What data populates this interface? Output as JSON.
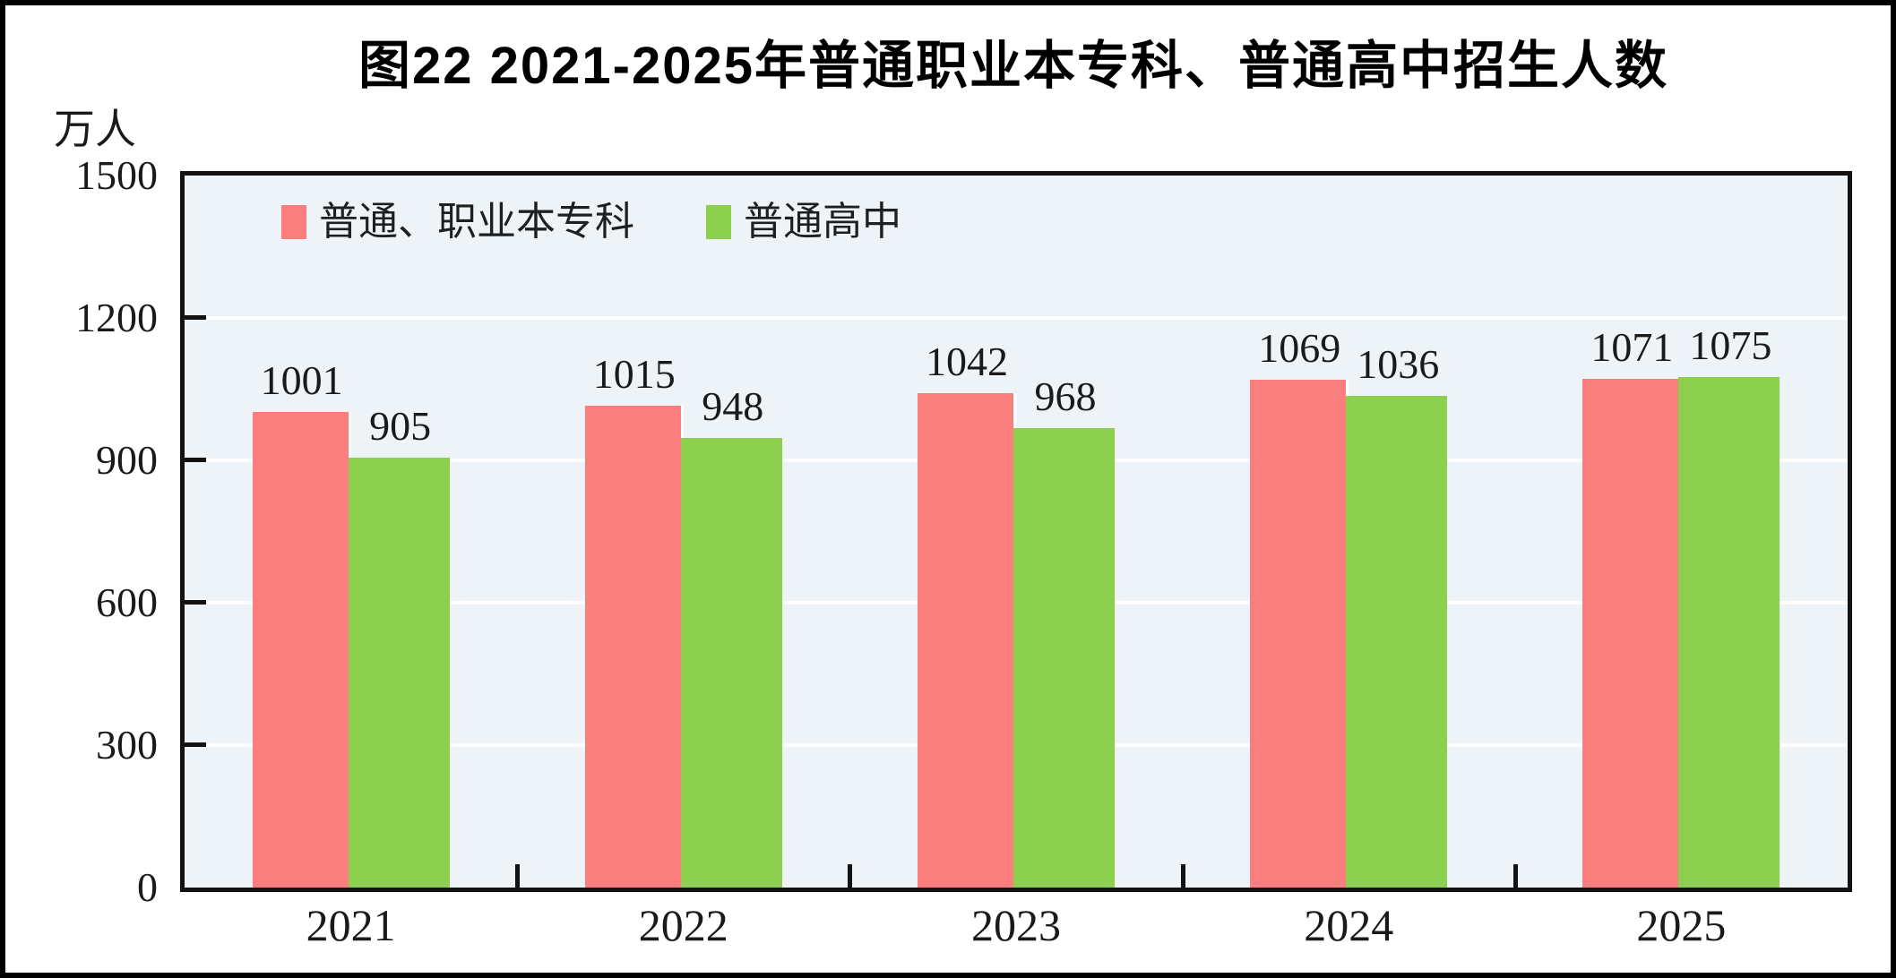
{
  "header": {
    "title": "图22  2021-2025年普通职业本专科、普通高中招生人数"
  },
  "axes": {
    "unit_label": "万人"
  },
  "colors": {
    "series1": "#FB7E7E",
    "series2": "#8DD04F",
    "plot_background": "#EDF3F7",
    "gridline": "#FFFFFF",
    "axis": "#121212",
    "text": "#1A1A1A"
  },
  "chart_data": {
    "type": "bar",
    "title": "图22  2021-2025年普通职业本专科、普通高中招生人数",
    "ylabel": "万人",
    "categories": [
      "2021",
      "2022",
      "2023",
      "2024",
      "2025"
    ],
    "series": [
      {
        "name": "普通、职业本专科",
        "color": "#FB7E7E",
        "values": [
          1001,
          1015,
          1042,
          1069,
          1071
        ]
      },
      {
        "name": "普通高中",
        "color": "#8DD04F",
        "values": [
          905,
          948,
          968,
          1036,
          1075
        ]
      }
    ],
    "ylim": [
      0,
      1500
    ],
    "y_ticks": [
      0,
      300,
      600,
      900,
      1200,
      1500
    ],
    "grid": true,
    "legend_position": "top-left-inside",
    "bar_value_labels": true
  }
}
